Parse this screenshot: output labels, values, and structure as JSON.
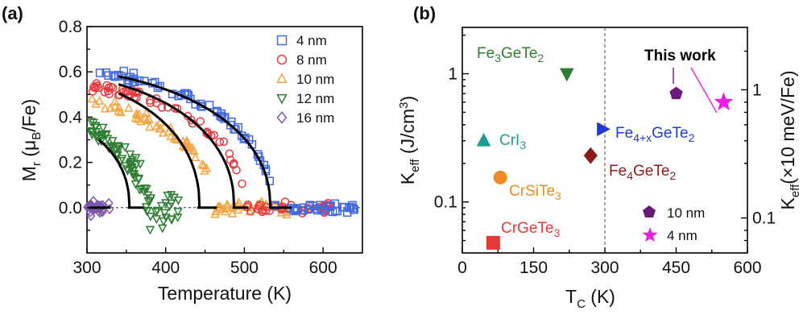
{
  "chart_data": [
    {
      "panel": "(a)",
      "type": "scatter",
      "xlabel": "Temperature (K)",
      "ylabel_main": "M",
      "ylabel_sub": "r",
      "ylabel_unit_open": " (μ",
      "ylabel_unit_sub": "B",
      "ylabel_unit_close": "/Fe)",
      "xlim": [
        300,
        650
      ],
      "ylim": [
        -0.2,
        0.8
      ],
      "xticks": [
        300,
        400,
        500,
        600
      ],
      "yticks": [
        0.0,
        0.2,
        0.4,
        0.6,
        0.8
      ],
      "tick_labels_x": [
        "300",
        "400",
        "500",
        "600"
      ],
      "tick_labels_y": [
        "0.0",
        "0.2",
        "0.4",
        "0.6",
        "0.8"
      ],
      "zero_line": true,
      "legend_position": "top-right",
      "series": [
        {
          "name": "4 nm",
          "color": "#4169e1",
          "marker": "square",
          "tc": 535,
          "m0": 0.63,
          "x_start": 305,
          "x_end": 640,
          "noise": 0.03
        },
        {
          "name": "8 nm",
          "color": "#e8383d",
          "marker": "circle",
          "tc": 500,
          "m0": 0.57,
          "x_start": 305,
          "x_end": 610,
          "noise": 0.035
        },
        {
          "name": "10 nm",
          "color": "#f5a442",
          "marker": "triangle-up",
          "tc": 460,
          "m0": 0.5,
          "x_start": 305,
          "x_end": 560,
          "noise": 0.04
        },
        {
          "name": "12 nm",
          "color": "#2e7d32",
          "marker": "triangle-down",
          "tc": 375,
          "m0": 0.38,
          "x_start": 305,
          "x_end": 420,
          "noise": 0.07
        },
        {
          "name": "16 nm",
          "color": "#7e57a8",
          "marker": "diamond",
          "tc": 300,
          "m0": 0.0,
          "x_start": 300,
          "x_end": 330,
          "noise": 0.025
        }
      ],
      "fits": [
        {
          "tc": 533,
          "m0": 0.58,
          "x_start": 340
        },
        {
          "tc": 487,
          "m0": 0.545,
          "x_start": 340
        },
        {
          "tc": 443,
          "m0": 0.505,
          "x_start": 340
        },
        {
          "tc": 354,
          "m0": 0.3,
          "x_start": 315
        }
      ],
      "fit_baselines": [
        {
          "x1": 303,
          "x2": 330
        },
        {
          "x1": 352,
          "x2": 372
        },
        {
          "x1": 440,
          "x2": 465
        },
        {
          "x1": 485,
          "x2": 505
        },
        {
          "x1": 532,
          "x2": 560
        }
      ]
    },
    {
      "panel": "(b)",
      "type": "scatter",
      "xlabel_main": "T",
      "xlabel_sub": "C",
      "xlabel_unit": " (K)",
      "ylabel_main": "K",
      "ylabel_sub": "eff",
      "ylabel_unit": " (J/cm",
      "ylabel_sup": "3",
      "ylabel_close": ")",
      "y2label_main": "K",
      "y2label_sub": "eff",
      "y2label_unit": "(×10 meV/Fe)",
      "xlim": [
        0,
        600
      ],
      "ylim_log": [
        0.04,
        2.3
      ],
      "xticks": [
        0,
        150,
        300,
        450,
        600
      ],
      "tick_labels_x": [
        "0",
        "150",
        "300",
        "450",
        "600"
      ],
      "tick_labels_y": [
        "0.1",
        "1"
      ],
      "y2_tick_labels": [
        "0.1",
        "1"
      ],
      "y2_ticks_in_left_units": [
        0.075,
        0.75
      ],
      "dashed_vline_x": 300,
      "points": [
        {
          "name": "Fe3GeTe2",
          "x": 220,
          "y": 1.0,
          "color": "#2e7d32",
          "marker": "triangle-down"
        },
        {
          "name": "CrI3",
          "x": 45,
          "y": 0.3,
          "color": "#1f9a94",
          "marker": "triangle-up"
        },
        {
          "name": "CrSiTe3",
          "x": 80,
          "y": 0.155,
          "color": "#f08a24",
          "marker": "circle"
        },
        {
          "name": "CrGeTe3",
          "x": 65,
          "y": 0.048,
          "color": "#e53935",
          "marker": "square"
        },
        {
          "name": "Fe4+xGeTe2",
          "x": 295,
          "y": 0.37,
          "color": "#1f3ad6",
          "marker": "triangle-right"
        },
        {
          "name": "Fe4GeTe2",
          "x": 270,
          "y": 0.23,
          "color": "#8b1a1a",
          "marker": "diamond"
        },
        {
          "name": "This work 10 nm",
          "x": 450,
          "y": 0.7,
          "color": "#6a1b7a",
          "marker": "pentagon"
        },
        {
          "name": "This work 4 nm",
          "x": 550,
          "y": 0.6,
          "color": "#e91ee6",
          "marker": "star"
        }
      ],
      "labels": {
        "fe3": {
          "main": "Fe",
          "s1": "3",
          "mid": "GeTe",
          "s2": "2"
        },
        "cri3": {
          "main": "CrI",
          "s1": "3"
        },
        "crsite3": {
          "main": "CrSiTe",
          "s1": "3"
        },
        "crgete3": {
          "main": "CrGeTe",
          "s1": "3"
        },
        "fe4x": {
          "main": "Fe",
          "s1": "4+x",
          "mid": "GeTe",
          "s2": "2"
        },
        "fe4": {
          "main": "Fe",
          "s1": "4",
          "mid": "GeTe",
          "s2": "2"
        },
        "this_work": "This work",
        "legend_10nm": "10 nm",
        "legend_4nm": "4 nm"
      }
    }
  ]
}
